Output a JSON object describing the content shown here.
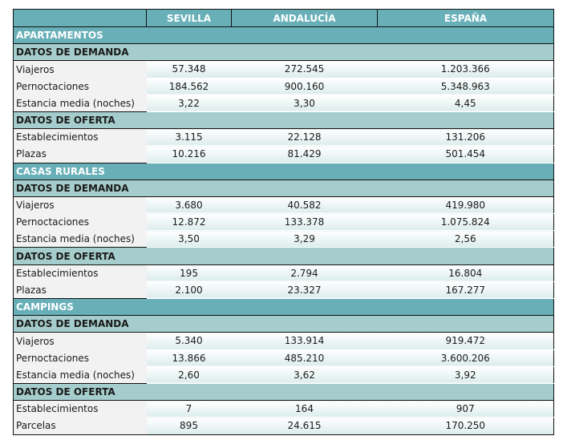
{
  "columns": [
    "",
    "SEVILLA",
    "ANDALUCÍA",
    "ESPAÑA"
  ],
  "sections": [
    {
      "title": "APARTAMENTOS",
      "groups": [
        {
          "title": "DATOS DE DEMANDA",
          "rows": [
            [
              "Viajeros",
              "57.348",
              "272.545",
              "1.203.366"
            ],
            [
              "Pernoctaciones",
              "184.562",
              "900.160",
              "5.348.963"
            ],
            [
              "Estancia media (noches)",
              "3,22",
              "3,30",
              "4,45"
            ]
          ]
        },
        {
          "title": "DATOS DE OFERTA",
          "rows": [
            [
              "Establecimientos",
              "3.115",
              "22.128",
              "131.206"
            ],
            [
              "Plazas",
              "10.216",
              "81.429",
              "501.454"
            ]
          ]
        }
      ]
    },
    {
      "title": "CASAS RURALES",
      "groups": [
        {
          "title": "DATOS DE DEMANDA",
          "rows": [
            [
              "Viajeros",
              "3.680",
              "40.582",
              "419.980"
            ],
            [
              "Pernoctaciones",
              "12.872",
              "133.378",
              "1.075.824"
            ],
            [
              "Estancia media (noches)",
              "3,50",
              "3,29",
              "2,56"
            ]
          ]
        },
        {
          "title": "DATOS DE OFERTA",
          "rows": [
            [
              "Establecimientos",
              "195",
              "2.794",
              "16.804"
            ],
            [
              "Plazas",
              "2.100",
              "23.327",
              "167.277"
            ]
          ]
        }
      ]
    },
    {
      "title": "CAMPINGS",
      "groups": [
        {
          "title": "DATOS DE DEMANDA",
          "rows": [
            [
              "Viajeros",
              "5.340",
              "133.914",
              "919.472"
            ],
            [
              "Pernoctaciones",
              "13.866",
              "485.210",
              "3.600.206"
            ],
            [
              "Estancia media (noches)",
              "2,60",
              "3,62",
              "3,92"
            ]
          ]
        },
        {
          "title": "DATOS DE OFERTA",
          "rows": [
            [
              "Establecimientos",
              "7",
              "164",
              "907"
            ],
            [
              "Parcelas",
              "895",
              "24.615",
              "170.250"
            ]
          ]
        }
      ]
    }
  ]
}
